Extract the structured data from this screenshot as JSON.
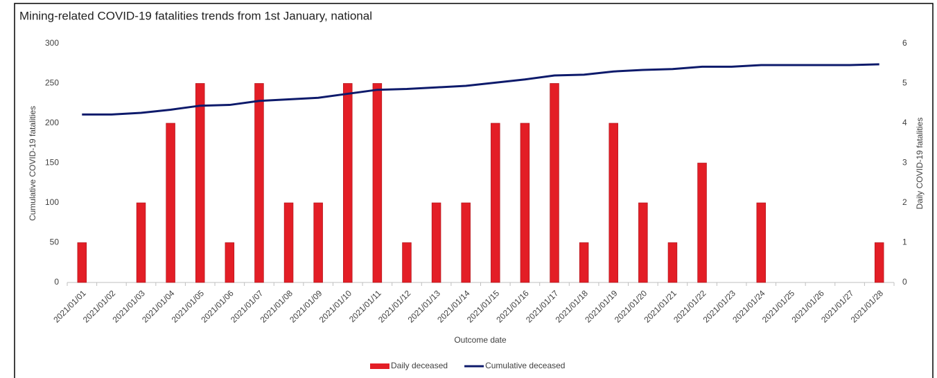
{
  "chart_data": {
    "type": "combo",
    "title": "Mining-related COVID-19 fatalities trends from 1st January, national",
    "x_label": "Outcome date",
    "y_label": "Cumulative COVID-19 fatalities",
    "y2_label": "Daily COVID-19 fatalities",
    "categories": [
      "2021/01/01",
      "2021/01/02",
      "2021/01/03",
      "2021/01/04",
      "2021/01/05",
      "2021/01/06",
      "2021/01/07",
      "2021/01/08",
      "2021/01/09",
      "2021/01/10",
      "2021/01/11",
      "2021/01/12",
      "2021/01/13",
      "2021/01/14",
      "2021/01/15",
      "2021/01/16",
      "2021/01/17",
      "2021/01/18",
      "2021/01/19",
      "2021/01/20",
      "2021/01/21",
      "2021/01/22",
      "2021/01/23",
      "2021/01/24",
      "2021/01/25",
      "2021/01/26",
      "2021/01/27",
      "2021/01/28"
    ],
    "series": [
      {
        "name": "Daily deceased",
        "type": "bar",
        "axis": "y2",
        "color": "#e31e26",
        "values": [
          1,
          0,
          2,
          4,
          5,
          1,
          5,
          2,
          2,
          5,
          5,
          1,
          2,
          2,
          4,
          4,
          5,
          1,
          4,
          2,
          1,
          3,
          0,
          2,
          0,
          0,
          0,
          1
        ]
      },
      {
        "name": "Cumulative deceased",
        "type": "line",
        "axis": "y",
        "color": "#0d1a6b",
        "values": [
          211,
          211,
          213,
          217,
          222,
          223,
          228,
          230,
          232,
          237,
          242,
          243,
          245,
          247,
          251,
          255,
          260,
          261,
          265,
          267,
          268,
          271,
          271,
          273,
          273,
          273,
          273,
          274
        ]
      }
    ],
    "ylim": [
      0,
      300
    ],
    "yticks": [
      0,
      50,
      100,
      150,
      200,
      250,
      300
    ],
    "y2lim": [
      0,
      6
    ],
    "y2ticks": [
      0,
      1,
      2,
      3,
      4,
      5,
      6
    ],
    "grid": false,
    "legend": "bottom"
  }
}
